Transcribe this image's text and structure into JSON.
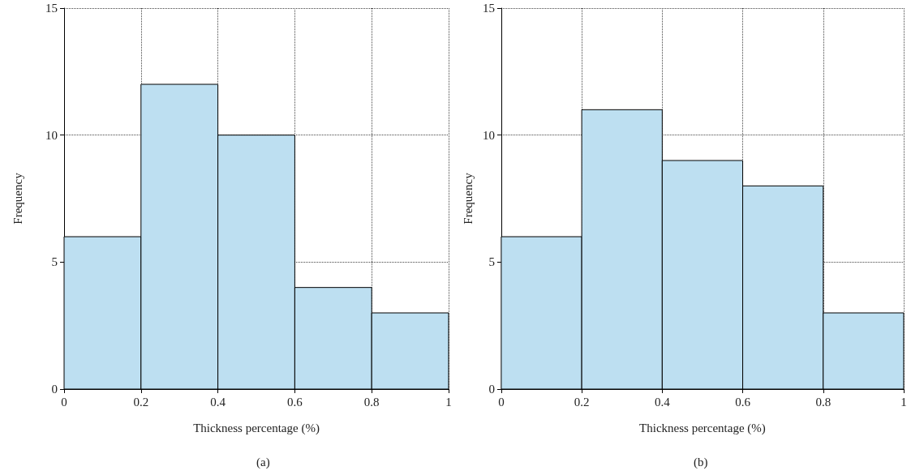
{
  "chart_data": [
    {
      "type": "histogram",
      "xlabel": "Thickness percentage (%)",
      "ylabel": "Frequency",
      "annotations": [
        "(a)"
      ],
      "bins": [
        0,
        0.2,
        0.4,
        0.6,
        0.8,
        1
      ],
      "values": [
        6,
        12,
        10,
        4,
        3
      ],
      "color": "#bddff1",
      "xlim": [
        0,
        1
      ],
      "xticks": [
        0,
        0.2,
        0.4,
        0.6,
        0.8,
        1
      ],
      "ylim": [
        0,
        15
      ],
      "yticks": [
        0,
        5,
        10,
        15
      ],
      "grid": true
    },
    {
      "type": "histogram",
      "xlabel": "Thickness percentage (%)",
      "ylabel": "Frequency",
      "annotations": [
        "(b)"
      ],
      "bins": [
        0,
        0.2,
        0.4,
        0.6,
        0.8,
        1
      ],
      "values": [
        6,
        11,
        9,
        8,
        3
      ],
      "color": "#bddff1",
      "xlim": [
        0,
        1
      ],
      "xticks": [
        0,
        0.2,
        0.4,
        0.6,
        0.8,
        1
      ],
      "ylim": [
        0,
        15
      ],
      "yticks": [
        0,
        5,
        10,
        15
      ],
      "grid": true
    }
  ]
}
